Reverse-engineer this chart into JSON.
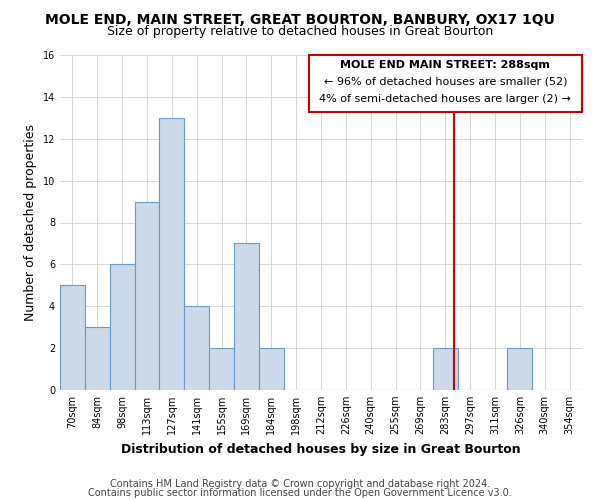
{
  "title": "MOLE END, MAIN STREET, GREAT BOURTON, BANBURY, OX17 1QU",
  "subtitle": "Size of property relative to detached houses in Great Bourton",
  "xlabel": "Distribution of detached houses by size in Great Bourton",
  "ylabel": "Number of detached properties",
  "bin_labels": [
    "70sqm",
    "84sqm",
    "98sqm",
    "113sqm",
    "127sqm",
    "141sqm",
    "155sqm",
    "169sqm",
    "184sqm",
    "198sqm",
    "212sqm",
    "226sqm",
    "240sqm",
    "255sqm",
    "269sqm",
    "283sqm",
    "297sqm",
    "311sqm",
    "326sqm",
    "340sqm",
    "354sqm"
  ],
  "bin_counts": [
    5,
    3,
    6,
    9,
    13,
    4,
    2,
    7,
    2,
    0,
    0,
    0,
    0,
    0,
    0,
    2,
    0,
    0,
    2,
    0,
    0
  ],
  "bar_color": "#ccd9e8",
  "bar_edge_color": "#6699cc",
  "marker_label_line1": "MOLE END MAIN STREET: 288sqm",
  "marker_label_line2": "← 96% of detached houses are smaller (52)",
  "marker_label_line3": "4% of semi-detached houses are larger (2) →",
  "marker_color": "#cc0000",
  "ylim": [
    0,
    16
  ],
  "yticks": [
    0,
    2,
    4,
    6,
    8,
    10,
    12,
    14,
    16
  ],
  "footnote1": "Contains HM Land Registry data © Crown copyright and database right 2024.",
  "footnote2": "Contains public sector information licensed under the Open Government Licence v3.0.",
  "bg_color": "#ffffff",
  "grid_color": "#d0d0d0",
  "title_fontsize": 10,
  "subtitle_fontsize": 9,
  "axis_label_fontsize": 9,
  "tick_fontsize": 7,
  "footnote_fontsize": 7,
  "annotation_fontsize": 8
}
